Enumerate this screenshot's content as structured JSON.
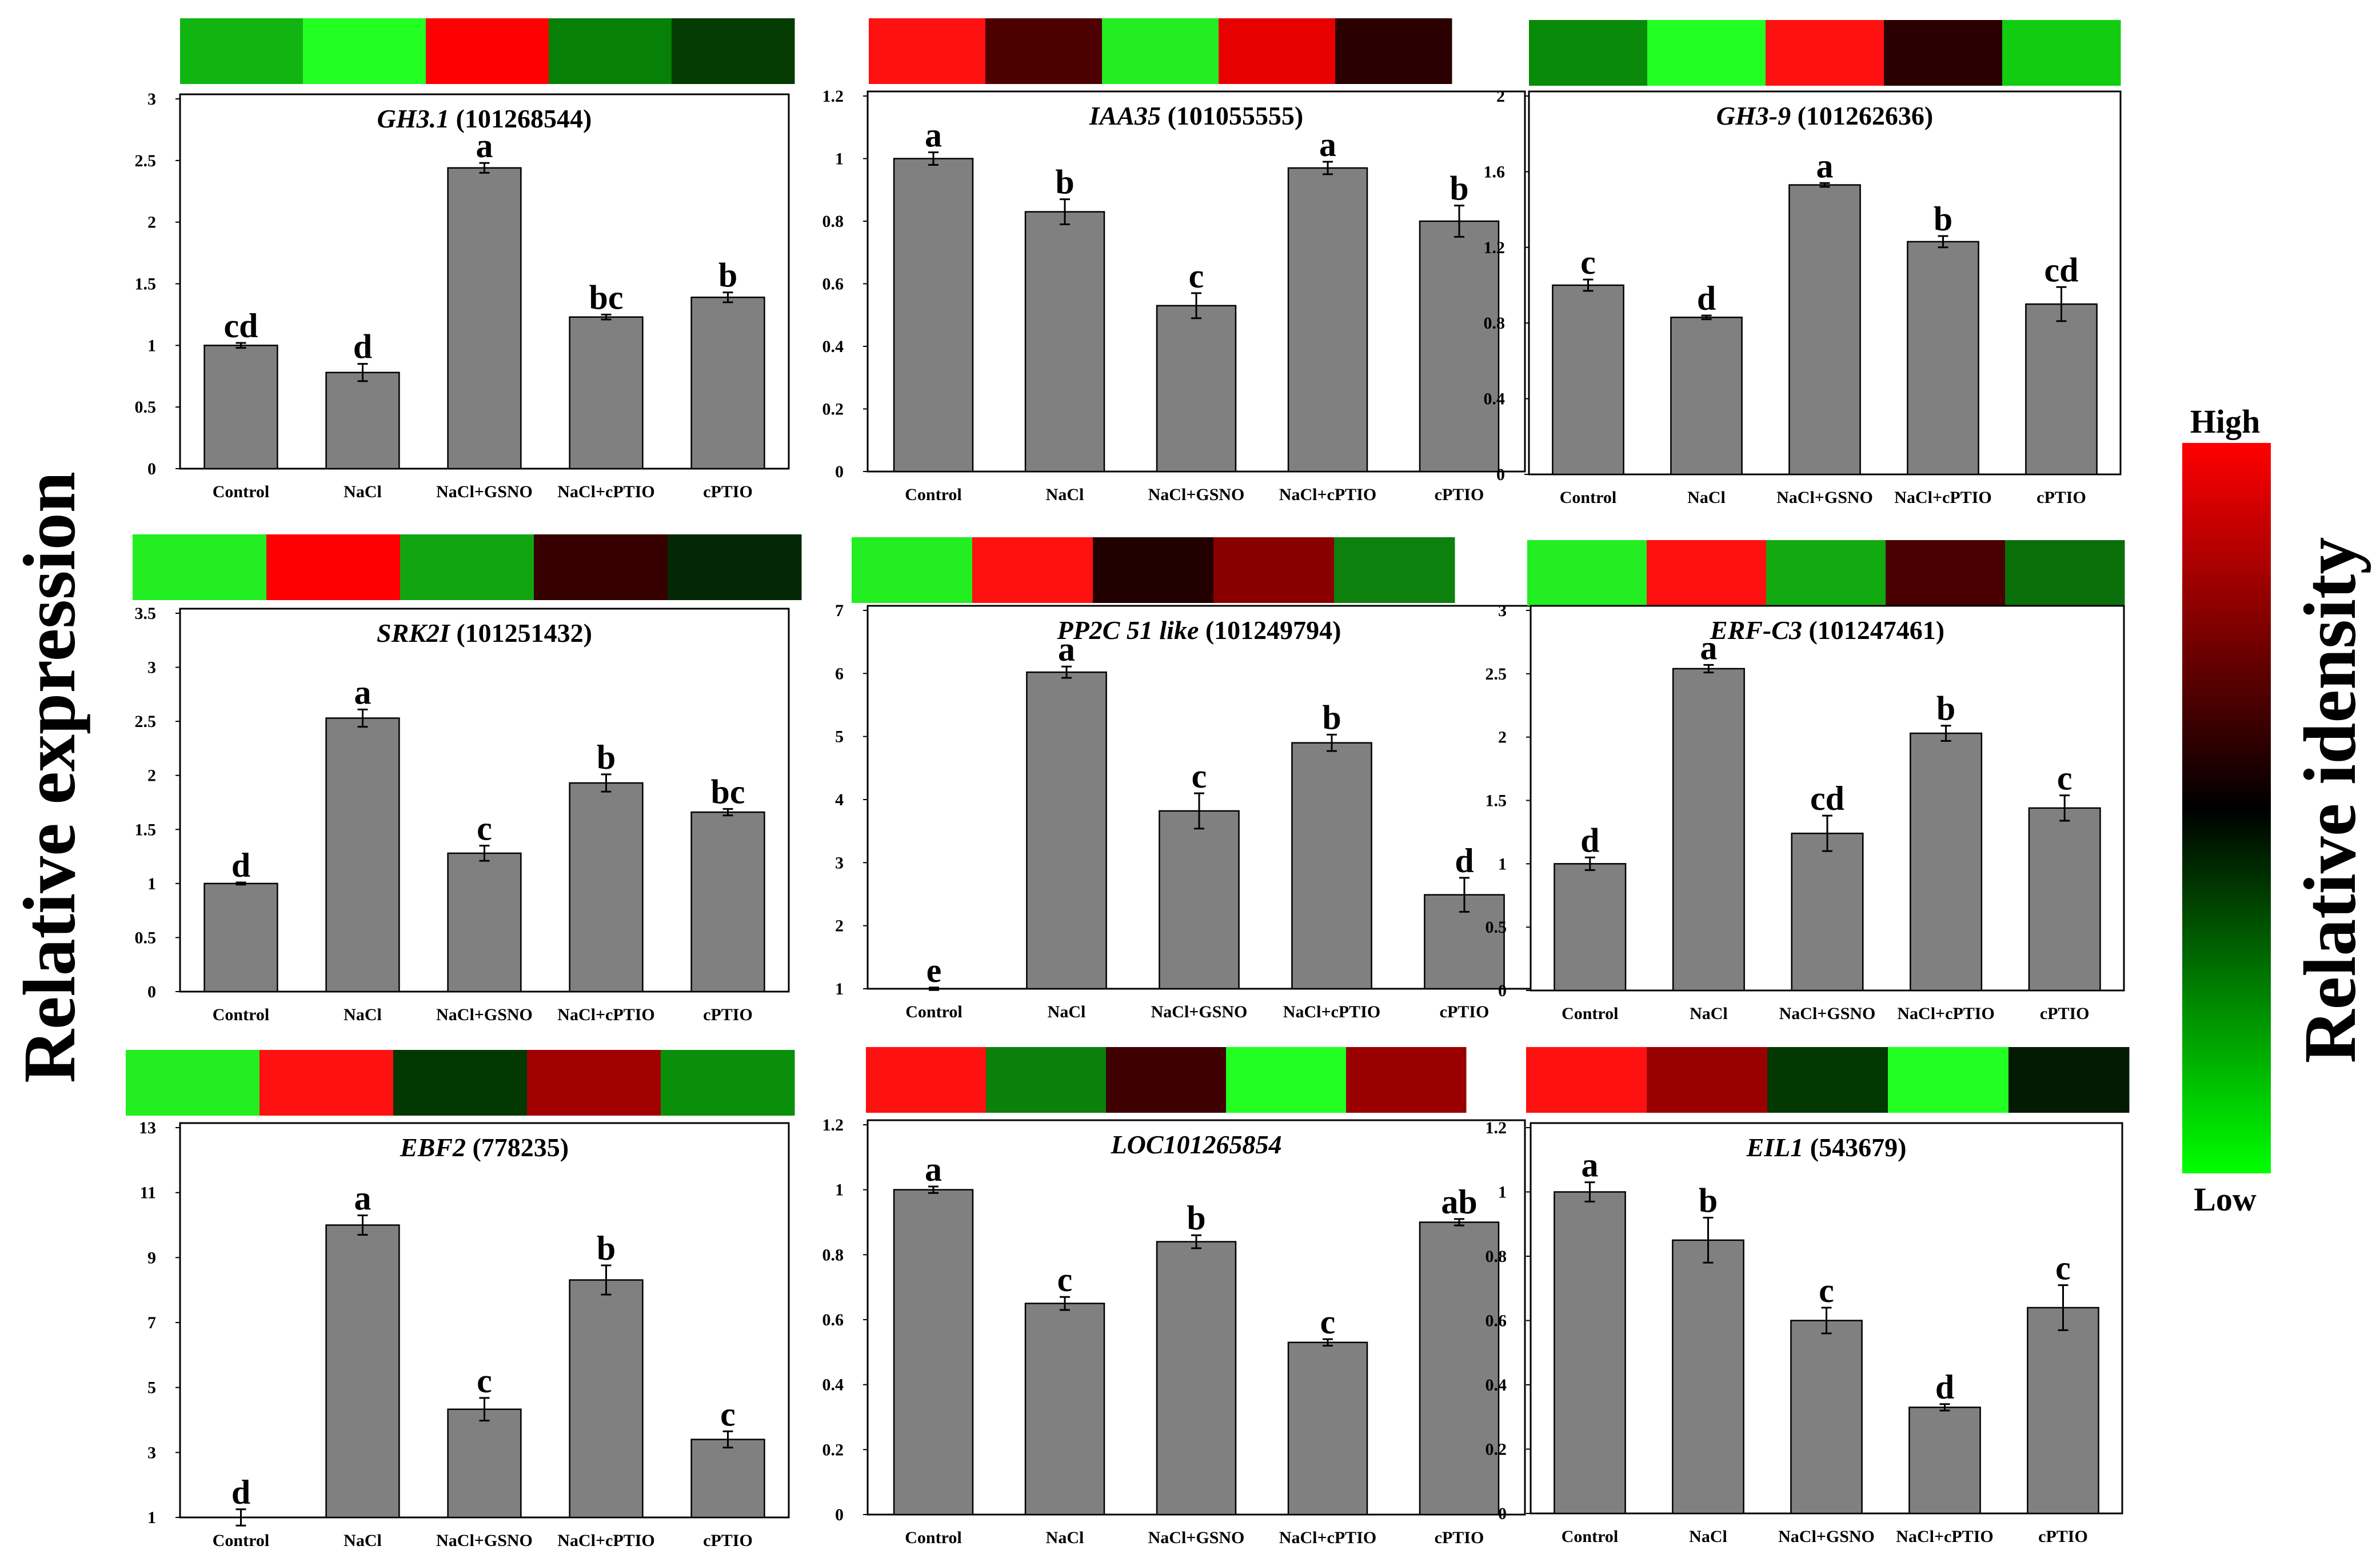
{
  "y_axis_label": "Relative expression",
  "legend": {
    "title": "Relative idensity",
    "high_label": "High",
    "low_label": "Low",
    "gradient_colors": [
      "#ff0000",
      "#000000",
      "#00ff00"
    ]
  },
  "colors": {
    "bar": "#808080",
    "frame": "#000000"
  },
  "chart_data": [
    {
      "type": "bar",
      "gene": "GH3.1",
      "gene_id": "(101268544)",
      "categories": [
        "Control",
        "NaCl",
        "NaCl+GSNO",
        "NaCl+cPTIO",
        "cPTIO"
      ],
      "values": [
        1.0,
        0.78,
        2.44,
        1.23,
        1.39
      ],
      "errors": [
        0.02,
        0.07,
        0.04,
        0.02,
        0.04
      ],
      "significance": [
        "cd",
        "d",
        "a",
        "bc",
        "b"
      ],
      "ylim": [
        0,
        3
      ],
      "yticks": [
        "0",
        "0.5",
        "1",
        "1.5",
        "2",
        "2.5",
        "3"
      ],
      "heatmap": [
        "#11b511",
        "#22ff22",
        "#ff0000",
        "#068006",
        "#033b03"
      ]
    },
    {
      "type": "bar",
      "gene": "IAA35",
      "gene_id": "(101055555)",
      "categories": [
        "Control",
        "NaCl",
        "NaCl+GSNO",
        "NaCl+cPTIO",
        "cPTIO"
      ],
      "values": [
        1.0,
        0.83,
        0.53,
        0.97,
        0.8
      ],
      "errors": [
        0.02,
        0.04,
        0.04,
        0.02,
        0.05
      ],
      "significance": [
        "a",
        "b",
        "c",
        "a",
        "b"
      ],
      "ylim": [
        0,
        1.2
      ],
      "yticks": [
        "0",
        "0.2",
        "0.4",
        "0.6",
        "0.8",
        "1",
        "1.2"
      ],
      "heatmap": [
        "#ff1111",
        "#4d0000",
        "#22ee22",
        "#e80000",
        "#2a0000"
      ]
    },
    {
      "type": "bar",
      "gene": "GH3-9",
      "gene_id": "(101262636)",
      "categories": [
        "Control",
        "NaCl",
        "NaCl+GSNO",
        "NaCl+cPTIO",
        "cPTIO"
      ],
      "values": [
        1.0,
        0.83,
        1.53,
        1.23,
        0.9
      ],
      "errors": [
        0.03,
        0.01,
        0.01,
        0.03,
        0.09
      ],
      "significance": [
        "c",
        "d",
        "a",
        "b",
        "cd"
      ],
      "ylim": [
        0,
        2
      ],
      "yticks": [
        "0",
        "0.4",
        "0.8",
        "1.2",
        "1.6",
        "2"
      ],
      "heatmap": [
        "#098a09",
        "#22ff22",
        "#ff1111",
        "#2a0000",
        "#11cc11"
      ]
    },
    {
      "type": "bar",
      "gene": "SRK2I",
      "gene_id": "(101251432)",
      "categories": [
        "Control",
        "NaCl",
        "NaCl+GSNO",
        "NaCl+cPTIO",
        "cPTIO"
      ],
      "values": [
        1.0,
        2.53,
        1.28,
        1.93,
        1.66
      ],
      "errors": [
        0.01,
        0.08,
        0.07,
        0.08,
        0.03
      ],
      "significance": [
        "d",
        "a",
        "c",
        "b",
        "bc"
      ],
      "ylim": [
        0,
        3.5
      ],
      "yticks": [
        "0",
        "0.5",
        "1",
        "1.5",
        "2",
        "2.5",
        "3",
        "3.5"
      ],
      "heatmap": [
        "#22ee22",
        "#ff0000",
        "#11a611",
        "#370000",
        "#032803"
      ]
    },
    {
      "type": "bar",
      "gene": "PP2C 51 like",
      "gene_id": "(101249794)",
      "categories": [
        "Control",
        "NaCl",
        "NaCl+GSNO",
        "NaCl+cPTIO",
        "cPTIO"
      ],
      "values": [
        1.0,
        6.02,
        3.82,
        4.9,
        2.49
      ],
      "errors": [
        0.02,
        0.09,
        0.28,
        0.13,
        0.27
      ],
      "significance": [
        "e",
        "a",
        "c",
        "b",
        "d"
      ],
      "ylim": [
        1,
        7
      ],
      "yticks": [
        "1",
        "2",
        "3",
        "4",
        "5",
        "6",
        "7"
      ],
      "heatmap": [
        "#22ee22",
        "#ff1111",
        "#220000",
        "#8a0000",
        "#0d800d"
      ]
    },
    {
      "type": "bar",
      "gene": "ERF-C3",
      "gene_id": "(101247461)",
      "categories": [
        "Control",
        "NaCl",
        "NaCl+GSNO",
        "NaCl+cPTIO",
        "cPTIO"
      ],
      "values": [
        1.0,
        2.54,
        1.24,
        2.03,
        1.44
      ],
      "errors": [
        0.05,
        0.03,
        0.14,
        0.06,
        0.1
      ],
      "significance": [
        "d",
        "a",
        "cd",
        "b",
        "c"
      ],
      "ylim": [
        0,
        3
      ],
      "yticks": [
        "0",
        "0.5",
        "1",
        "1.5",
        "2",
        "2.5",
        "3"
      ],
      "heatmap": [
        "#22ee22",
        "#ff1111",
        "#11aa11",
        "#4a0000",
        "#0a700a"
      ]
    },
    {
      "type": "bar",
      "gene": "EBF2",
      "gene_id": "(778235)",
      "categories": [
        "Control",
        "NaCl",
        "NaCl+GSNO",
        "NaCl+cPTIO",
        "cPTIO"
      ],
      "values": [
        1.0,
        10.0,
        4.33,
        8.31,
        3.4
      ],
      "errors": [
        0.25,
        0.3,
        0.35,
        0.45,
        0.25
      ],
      "significance": [
        "d",
        "a",
        "c",
        "b",
        "c"
      ],
      "ylim": [
        1,
        13
      ],
      "yticks": [
        "1",
        "3",
        "5",
        "7",
        "9",
        "11",
        "13"
      ],
      "heatmap": [
        "#22ee22",
        "#ff1111",
        "#033803",
        "#a00000",
        "#0a8f0a"
      ]
    },
    {
      "type": "bar",
      "gene": "LOC101265854",
      "gene_id": "",
      "categories": [
        "Control",
        "NaCl",
        "NaCl+GSNO",
        "NaCl+cPTIO",
        "cPTIO"
      ],
      "values": [
        1.0,
        0.65,
        0.84,
        0.53,
        0.9
      ],
      "errors": [
        0.01,
        0.02,
        0.02,
        0.01,
        0.01
      ],
      "significance": [
        "a",
        "c",
        "b",
        "c",
        "ab"
      ],
      "ylim": [
        0,
        1.2
      ],
      "yticks": [
        "0",
        "0.2",
        "0.4",
        "0.6",
        "0.8",
        "1",
        "1.2"
      ],
      "heatmap": [
        "#ff1111",
        "#0b800b",
        "#3e0000",
        "#22ff22",
        "#9a0000"
      ]
    },
    {
      "type": "bar",
      "gene": "EIL1",
      "gene_id": "(543679)",
      "categories": [
        "Control",
        "NaCl",
        "NaCl+GSNO",
        "NaCl+cPTIO",
        "cPTIO"
      ],
      "values": [
        1.0,
        0.85,
        0.6,
        0.33,
        0.64
      ],
      "errors": [
        0.03,
        0.07,
        0.04,
        0.01,
        0.07
      ],
      "significance": [
        "a",
        "b",
        "c",
        "d",
        "c"
      ],
      "ylim": [
        0,
        1.2
      ],
      "yticks": [
        "0",
        "0.2",
        "0.4",
        "0.6",
        "0.8",
        "1",
        "1.2"
      ],
      "heatmap": [
        "#ff1111",
        "#990000",
        "#033803",
        "#22ff22",
        "#031a03"
      ]
    }
  ]
}
